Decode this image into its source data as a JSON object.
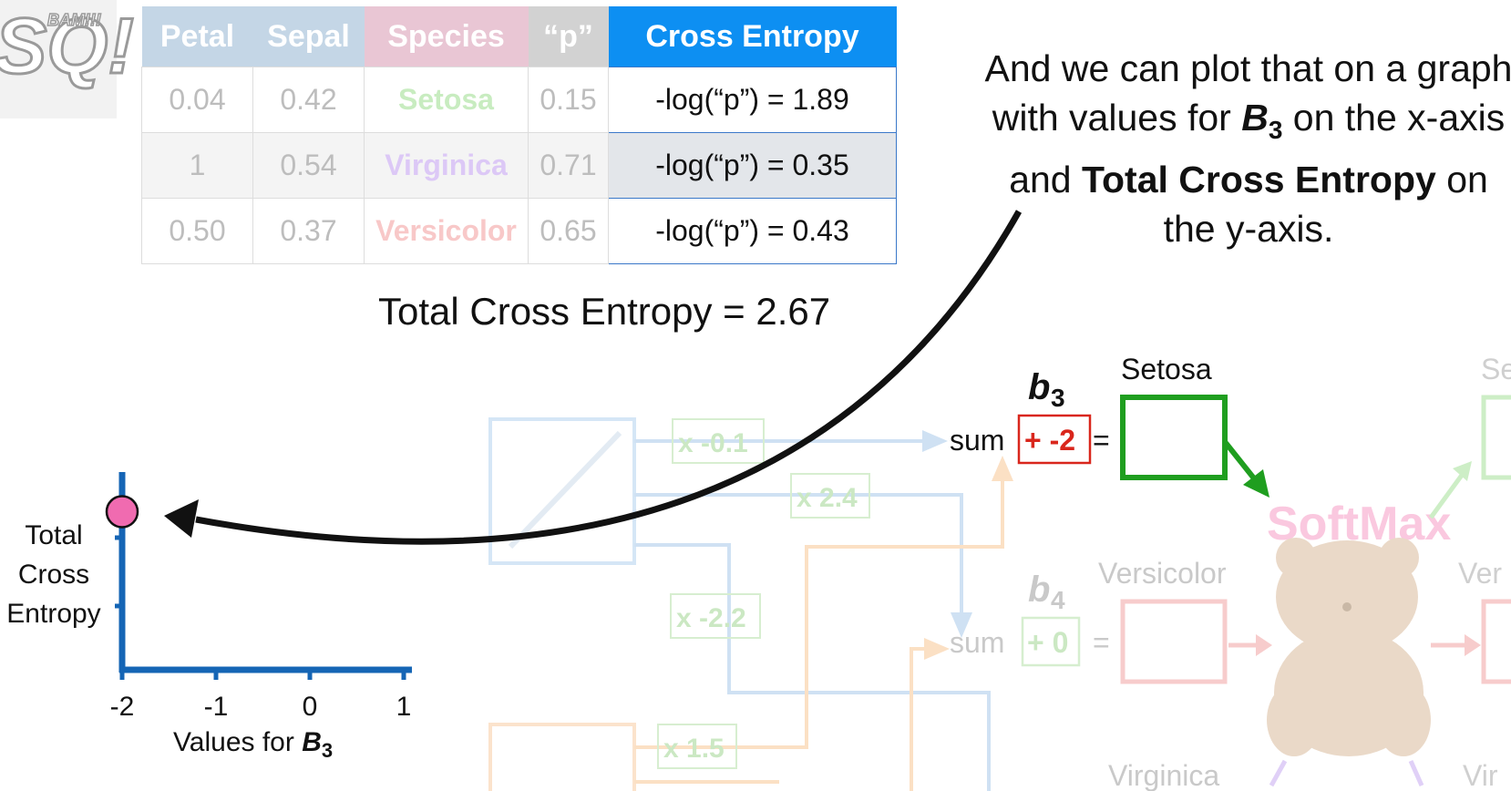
{
  "table": {
    "headers": [
      "Petal",
      "Sepal",
      "Species",
      "“p”",
      "Cross Entropy"
    ],
    "header_colors": [
      "#c4d6e6",
      "#c4d6e6",
      "#e9c6d4",
      "#d2d2d2",
      "#0d8ff2"
    ],
    "rows": [
      {
        "petal": "0.04",
        "sepal": "0.42",
        "species": "Setosa",
        "species_color": "#c8ecc0",
        "p": "0.15",
        "cross_entropy": "-log(“p”) = 1.89",
        "shade": "#ffffff"
      },
      {
        "petal": "1",
        "sepal": "0.54",
        "species": "Virginica",
        "species_color": "#dcc8f6",
        "p": "0.71",
        "cross_entropy": "-log(“p”) = 0.35",
        "shade": "#f4f4f4"
      },
      {
        "petal": "0.50",
        "sepal": "0.37",
        "species": "Versicolor",
        "species_color": "#f8c8c8",
        "p": "0.65",
        "cross_entropy": "-log(“p”) = 0.43",
        "shade": "#ffffff"
      }
    ],
    "ce_row_shade": [
      "#ffffff",
      "#e3e6ea",
      "#ffffff"
    ]
  },
  "total_cross_entropy": "Total Cross Entropy = 2.67",
  "explanation": {
    "part1": "And we can plot that on a graph with values for ",
    "b3_letter": "B",
    "b3_sub": "3",
    "part2": " on the x-axis and ",
    "bold2": "Total Cross Entropy",
    "part3": " on the y-axis."
  },
  "graph": {
    "ylabel_lines": [
      "Total",
      "Cross",
      "Entropy"
    ],
    "xlabel_prefix": "Values for ",
    "xlabel_letter": "B",
    "xlabel_sub": "3",
    "x_ticks": [
      "-2",
      "-1",
      "0",
      "1"
    ],
    "point_color": "#f06bb0",
    "axis_color": "#1565b5"
  },
  "chart_data": {
    "type": "scatter",
    "x": [
      -2
    ],
    "y": [
      2.67
    ],
    "x_ticks": [
      -2,
      -1,
      0,
      1
    ],
    "xlabel": "Values for B3",
    "ylabel": "Total Cross Entropy",
    "point_color": "#f06bb0"
  },
  "network": {
    "weights": [
      "x -0.1",
      "x 2.4",
      "x -2.2",
      "x 1.5"
    ],
    "b3": {
      "letter": "b",
      "sub": "3",
      "sum": "sum",
      "bias": "+ -2",
      "eq": "=",
      "output": "Setosa"
    },
    "b4": {
      "letter": "b",
      "sub": "4",
      "sum": "sum",
      "bias": "+ 0",
      "eq": "=",
      "output": "Versicolor"
    },
    "b5_output": "Virginica",
    "softmax": "SoftMax",
    "cut_labels": [
      "Se",
      "Ver",
      "Vir"
    ]
  },
  "colors": {
    "red": "#d9261c",
    "green": "#1f9e1f",
    "black": "#111111",
    "blue_faint": "#cfe1f3",
    "orange_faint": "#fbe0c4"
  }
}
